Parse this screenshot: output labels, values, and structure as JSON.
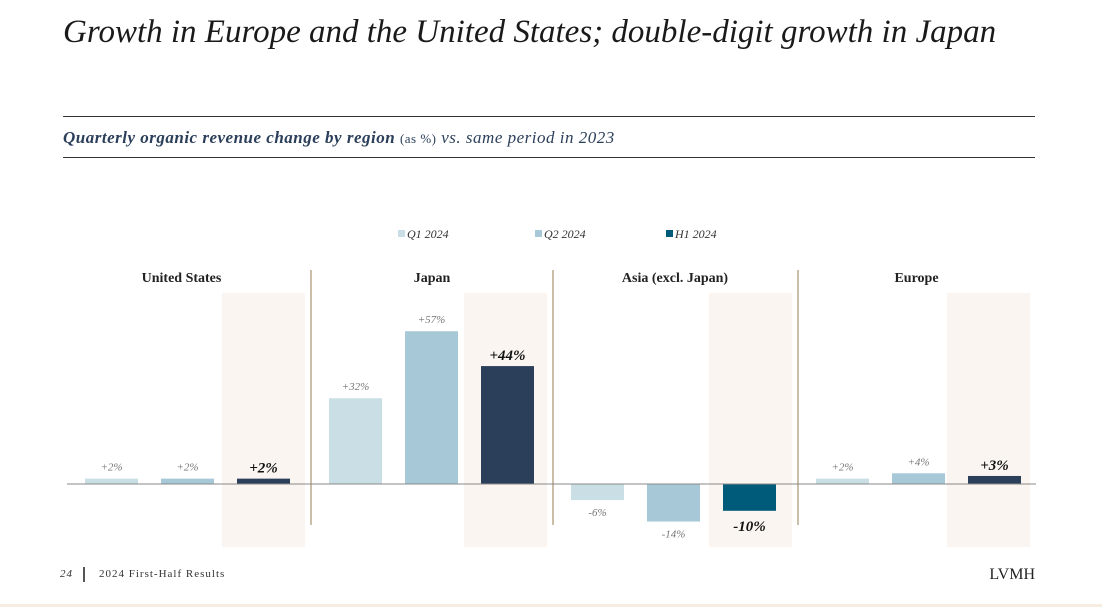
{
  "title": "Growth in Europe and the United States; double-digit growth in Japan",
  "subtitle": {
    "bold": "Quarterly organic revenue change by region",
    "unit": "(as %)",
    "rest": "vs. same period in 2023"
  },
  "footer": {
    "page": "24",
    "label": "2024 First-Half Results",
    "logo": "LVMH"
  },
  "chart_data": {
    "type": "bar",
    "categories": [
      "United States",
      "Japan",
      "Asia (excl. Japan)",
      "Europe"
    ],
    "series": [
      {
        "name": "Q1 2024",
        "values": [
          2,
          32,
          -6,
          2
        ],
        "labels": [
          "+2%",
          "+32%",
          "-6%",
          "+2%"
        ],
        "color": "#c9dfe5"
      },
      {
        "name": "Q2 2024",
        "values": [
          2,
          57,
          -14,
          4
        ],
        "labels": [
          "+2%",
          "+57%",
          "-14%",
          "+4%"
        ],
        "color": "#a7c8d6"
      },
      {
        "name": "H1 2024",
        "values": [
          2,
          44,
          -10,
          3
        ],
        "labels": [
          "+2%",
          "+44%",
          "-10%",
          "+3%"
        ],
        "color": "#005a7a",
        "bar_colors": [
          "#2b3f5a",
          "#2b3f5a",
          "#005a7a",
          "#2b3f5a"
        ]
      }
    ],
    "highlight_color": "#faf5f1",
    "legend": "top"
  }
}
